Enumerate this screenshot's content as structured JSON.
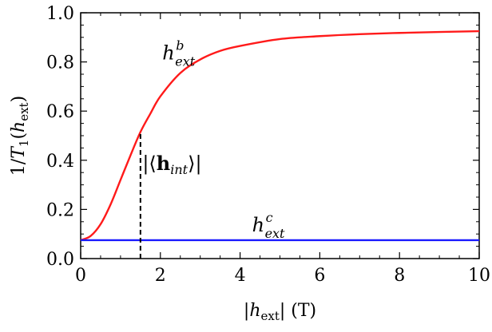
{
  "chart_data": {
    "type": "line",
    "xlabel": "|h_ext| (T)",
    "ylabel": "1/T1(h_ext)",
    "xlim": [
      0,
      10
    ],
    "ylim": [
      0,
      1
    ],
    "xticks": [
      0,
      2,
      4,
      6,
      8,
      10
    ],
    "yticks": [
      0.0,
      0.2,
      0.4,
      0.6,
      0.8,
      1.0
    ],
    "xtick_labels": [
      "0",
      "2",
      "4",
      "6",
      "8",
      "10"
    ],
    "ytick_labels": [
      "0.0",
      "0.2",
      "0.4",
      "0.6",
      "0.8",
      "1.0"
    ],
    "grid": false,
    "series": [
      {
        "color": "#ff1a1a",
        "x": [
          0,
          0.25,
          0.5,
          0.75,
          1.0,
          1.25,
          1.5,
          1.75,
          2.0,
          2.5,
          3.0,
          3.5,
          4.0,
          5.0,
          6.0,
          7.0,
          8.0,
          9.0,
          10.0
        ],
        "y": [
          0.075,
          0.092,
          0.14,
          0.22,
          0.32,
          0.42,
          0.515,
          0.59,
          0.66,
          0.755,
          0.81,
          0.845,
          0.865,
          0.893,
          0.905,
          0.913,
          0.918,
          0.922,
          0.925
        ]
      },
      {
        "color": "#1a1aff",
        "x": [
          0,
          10
        ],
        "y": [
          0.075,
          0.075
        ]
      }
    ],
    "marker": {
      "x": 1.5,
      "y_from": 0,
      "y_to": 0.515,
      "style": "dashed"
    },
    "annotations": {
      "red_curve_label": {
        "base": "h",
        "sup": "b",
        "sub": "ext",
        "x": 2.05,
        "y": 0.81
      },
      "blue_line_label": {
        "base": "h",
        "sup": "c",
        "sub": "ext",
        "x": 4.3,
        "y": 0.11
      },
      "marker_label": {
        "text": "|⟨h_int⟩|",
        "x": 1.55,
        "y": 0.36
      }
    }
  }
}
